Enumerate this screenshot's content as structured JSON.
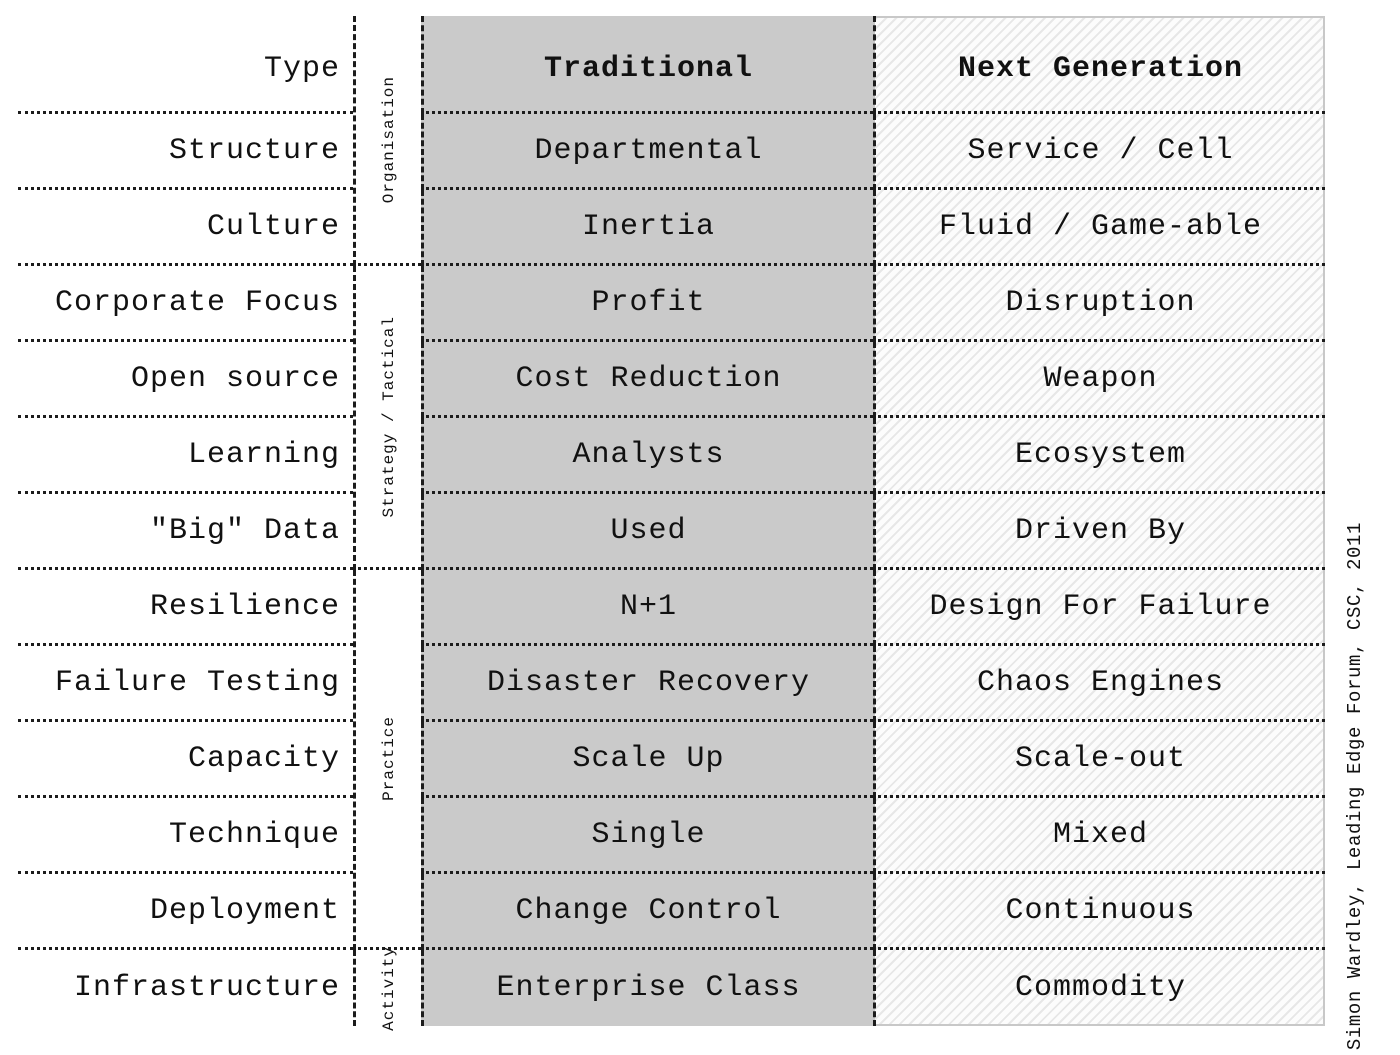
{
  "table": {
    "header": {
      "row_label": "Type",
      "traditional": "Traditional",
      "next_generation": "Next Generation"
    },
    "rows": [
      {
        "label": "Structure",
        "traditional": "Departmental",
        "next_generation": "Service / Cell"
      },
      {
        "label": "Culture",
        "traditional": "Inertia",
        "next_generation": "Fluid / Game-able"
      },
      {
        "label": "Corporate Focus",
        "traditional": "Profit",
        "next_generation": "Disruption"
      },
      {
        "label": "Open source",
        "traditional": "Cost Reduction",
        "next_generation": "Weapon"
      },
      {
        "label": "Learning",
        "traditional": "Analysts",
        "next_generation": "Ecosystem"
      },
      {
        "label": "\"Big\" Data",
        "traditional": "Used",
        "next_generation": "Driven By"
      },
      {
        "label": "Resilience",
        "traditional": "N+1",
        "next_generation": "Design For Failure"
      },
      {
        "label": "Failure Testing",
        "traditional": "Disaster Recovery",
        "next_generation": "Chaos Engines"
      },
      {
        "label": "Capacity",
        "traditional": "Scale Up",
        "next_generation": "Scale-out"
      },
      {
        "label": "Technique",
        "traditional": "Single",
        "next_generation": "Mixed"
      },
      {
        "label": "Deployment",
        "traditional": "Change Control",
        "next_generation": "Continuous"
      },
      {
        "label": "Infrastructure",
        "traditional": "Enterprise Class",
        "next_generation": "Commodity"
      }
    ],
    "sections": [
      "Organisation",
      "Strategy / Tactical",
      "Practice",
      "Activity"
    ]
  },
  "attribution": "Simon Wardley, Leading Edge Forum, CSC, 2011",
  "colors": {
    "traditional_bg": "#cacaca",
    "next_gen_bg": "#fcfcfc",
    "next_gen_hatch_line": "#e7e7e7",
    "divider": "#1c1c1c",
    "text": "#111111"
  }
}
